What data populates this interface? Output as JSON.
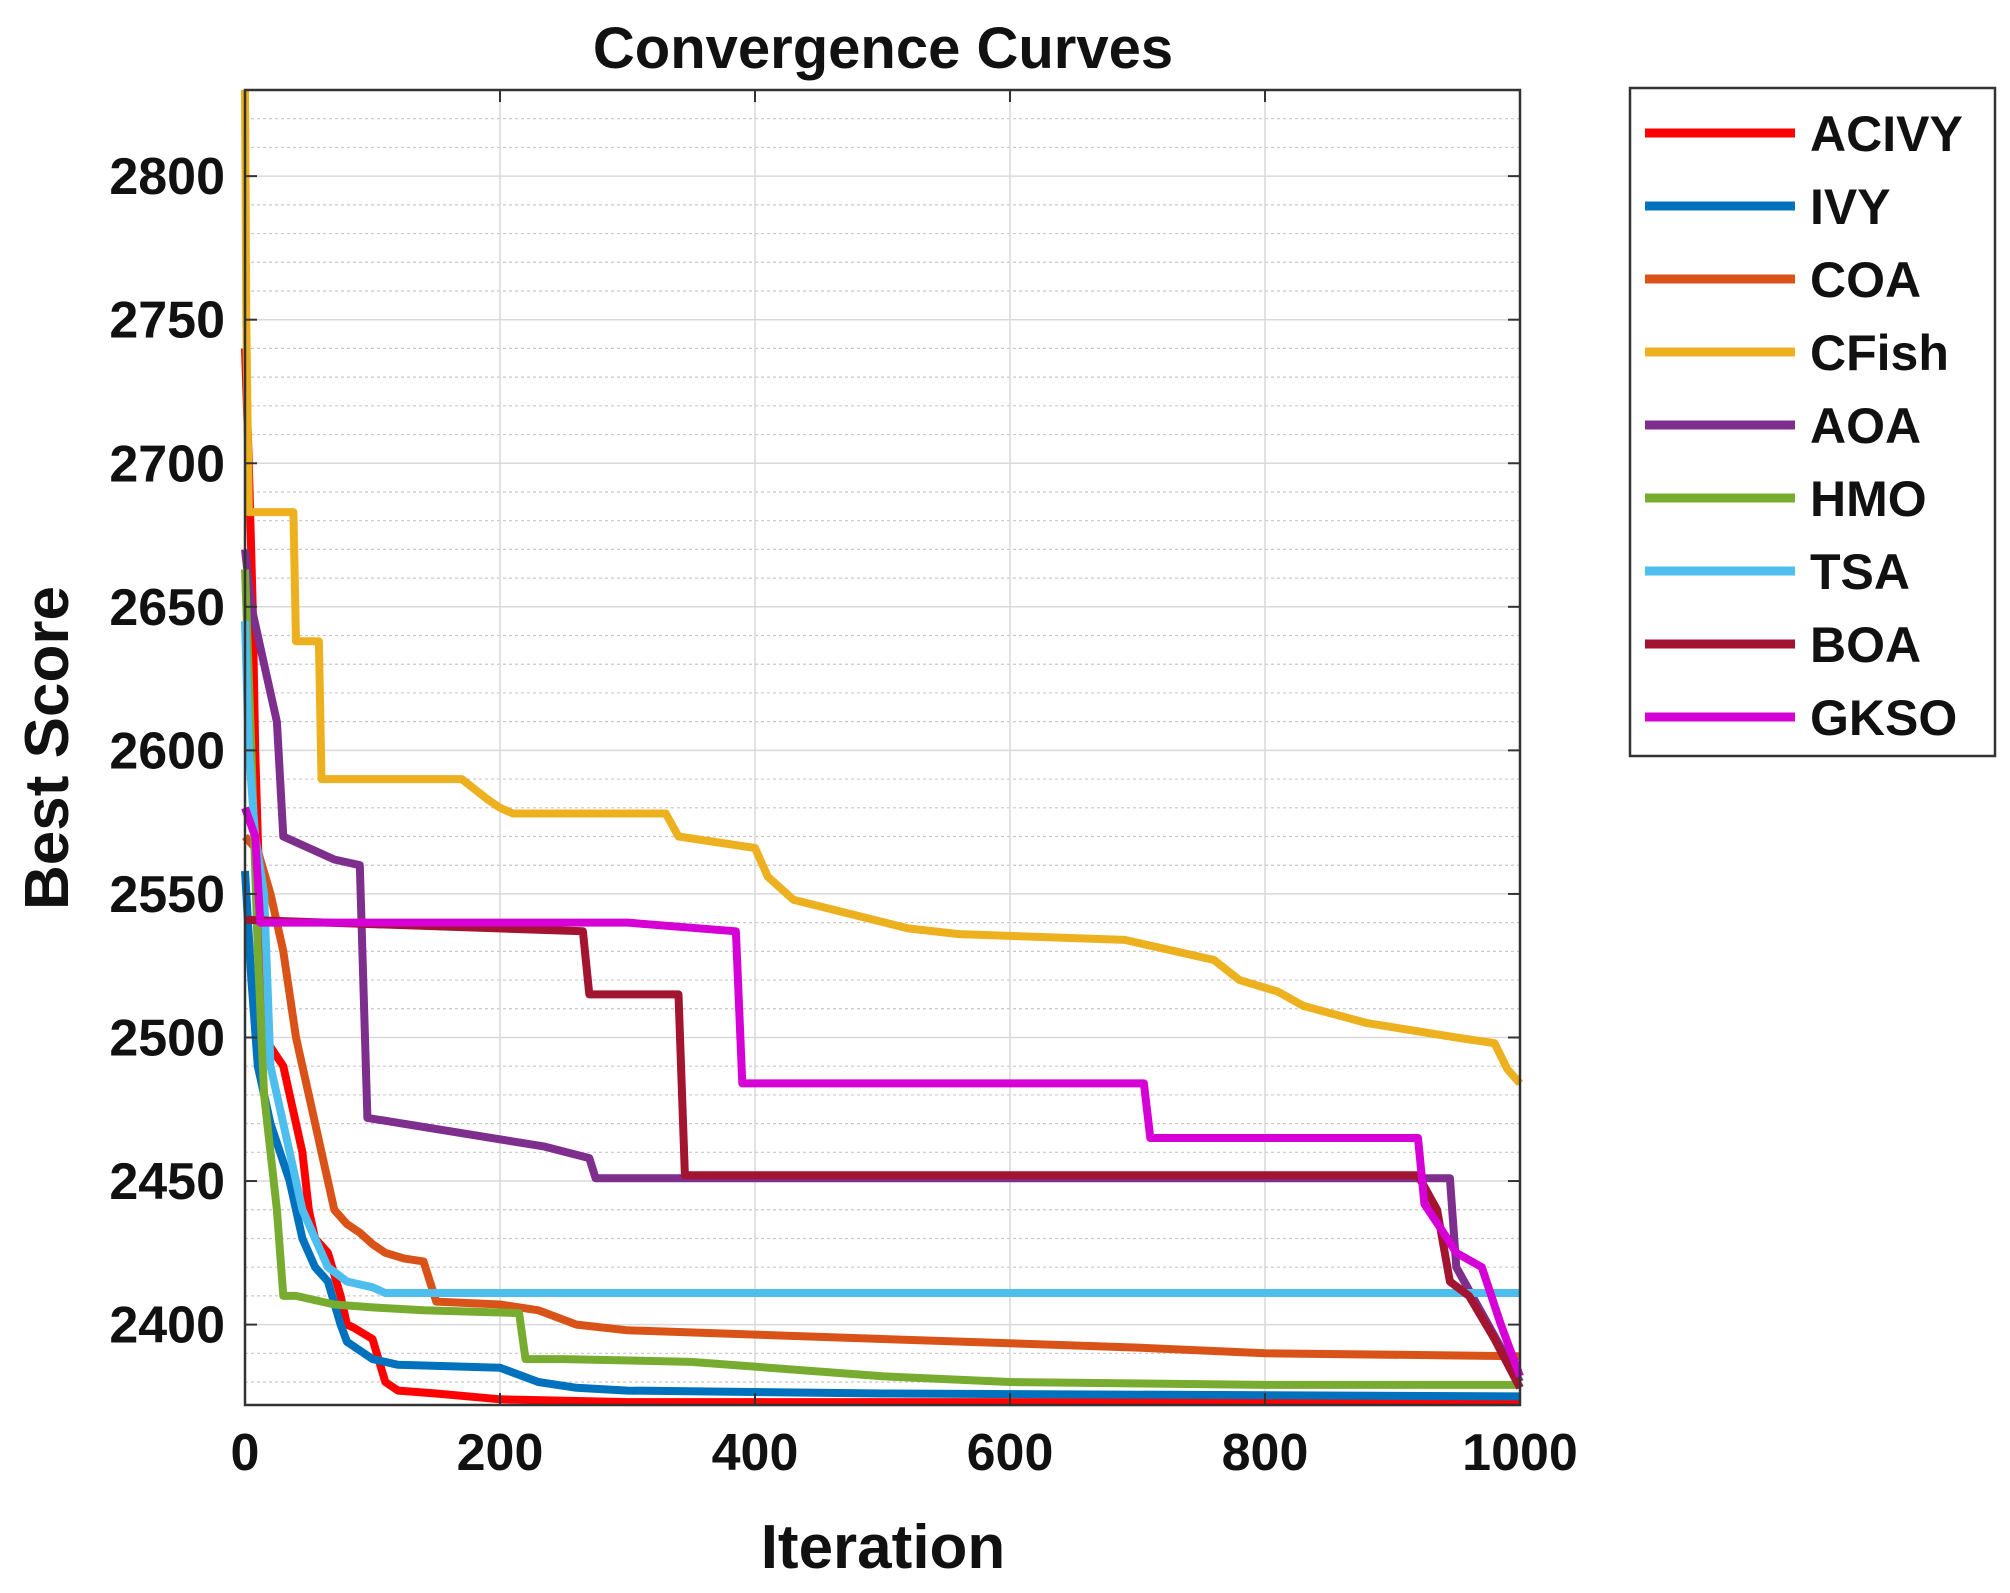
{
  "chart_data": {
    "type": "line",
    "title": "Convergence Curves",
    "xlabel": "Iteration",
    "ylabel": "Best Score",
    "xlim": [
      0,
      1000
    ],
    "ylim": [
      2372,
      2830
    ],
    "xticks": [
      0,
      200,
      400,
      600,
      800,
      1000
    ],
    "yticks": [
      2400,
      2450,
      2500,
      2550,
      2600,
      2650,
      2700,
      2750,
      2800
    ],
    "grid": true,
    "minor_grid_y": true,
    "legend_position": "outside-right",
    "series": [
      {
        "name": "ACIVY",
        "color": "#ff0000",
        "x": [
          0,
          3,
          6,
          8,
          10,
          15,
          30,
          45,
          50,
          55,
          65,
          75,
          80,
          85,
          100,
          110,
          120,
          150,
          200,
          300,
          500,
          1000
        ],
        "y": [
          2740,
          2700,
          2650,
          2600,
          2570,
          2500,
          2490,
          2460,
          2440,
          2430,
          2425,
          2410,
          2400,
          2399,
          2395,
          2380,
          2377,
          2376,
          2374,
          2373,
          2373,
          2373
        ]
      },
      {
        "name": "IVY",
        "color": "#0072bd",
        "x": [
          0,
          5,
          10,
          20,
          35,
          45,
          55,
          65,
          75,
          80,
          90,
          100,
          120,
          200,
          230,
          260,
          300,
          500,
          1000
        ],
        "y": [
          2558,
          2520,
          2490,
          2470,
          2450,
          2430,
          2420,
          2415,
          2400,
          2394,
          2391,
          2388,
          2386,
          2385,
          2380,
          2378,
          2377,
          2376,
          2375
        ]
      },
      {
        "name": "COA",
        "color": "#d95319",
        "x": [
          0,
          10,
          20,
          30,
          40,
          45,
          50,
          60,
          70,
          80,
          90,
          100,
          110,
          125,
          140,
          150,
          200,
          230,
          260,
          300,
          500,
          700,
          800,
          1000
        ],
        "y": [
          2570,
          2565,
          2550,
          2530,
          2500,
          2490,
          2480,
          2460,
          2440,
          2435,
          2432,
          2428,
          2425,
          2423,
          2422,
          2408,
          2407,
          2405,
          2400,
          2398,
          2395,
          2392,
          2390,
          2389
        ]
      },
      {
        "name": "CFish",
        "color": "#edb120",
        "x": [
          0,
          1,
          3,
          38,
          40,
          58,
          60,
          170,
          190,
          200,
          210,
          330,
          340,
          400,
          410,
          430,
          520,
          560,
          690,
          760,
          780,
          810,
          830,
          880,
          950,
          980,
          990,
          1000
        ],
        "y": [
          2830,
          2750,
          2683,
          2683,
          2638,
          2638,
          2590,
          2590,
          2583,
          2580,
          2578,
          2578,
          2570,
          2566,
          2556,
          2548,
          2538,
          2536,
          2534,
          2527,
          2520,
          2516,
          2511,
          2505,
          2500,
          2498,
          2489,
          2484
        ]
      },
      {
        "name": "AOA",
        "color": "#7e2f8e",
        "x": [
          0,
          5,
          15,
          25,
          30,
          70,
          90,
          96,
          235,
          270,
          275,
          945,
          950,
          1000
        ],
        "y": [
          2670,
          2650,
          2630,
          2610,
          2570,
          2562,
          2560,
          2472,
          2462,
          2458,
          2451,
          2451,
          2420,
          2380
        ]
      },
      {
        "name": "HMO",
        "color": "#77ac30",
        "x": [
          0,
          5,
          10,
          15,
          20,
          25,
          30,
          40,
          60,
          70,
          100,
          140,
          215,
          220,
          250,
          350,
          500,
          600,
          800,
          1000
        ],
        "y": [
          2663,
          2600,
          2530,
          2480,
          2460,
          2440,
          2410,
          2410,
          2408,
          2407,
          2406,
          2405,
          2404,
          2388,
          2388,
          2387,
          2382,
          2380,
          2379,
          2379
        ]
      },
      {
        "name": "TSA",
        "color": "#4dbeee",
        "x": [
          0,
          3,
          8,
          15,
          20,
          30,
          45,
          55,
          65,
          80,
          100,
          110,
          1000
        ],
        "y": [
          2645,
          2600,
          2570,
          2550,
          2490,
          2470,
          2440,
          2430,
          2420,
          2415,
          2413,
          2411,
          2411
        ]
      },
      {
        "name": "BOA",
        "color": "#a2142f",
        "x": [
          0,
          265,
          270,
          340,
          345,
          920,
          935,
          945,
          960,
          980,
          1000
        ],
        "y": [
          2541,
          2537,
          2515,
          2515,
          2452,
          2452,
          2440,
          2415,
          2410,
          2395,
          2378
        ]
      },
      {
        "name": "GKSO",
        "color": "#d600d6",
        "x": [
          0,
          8,
          12,
          300,
          385,
          390,
          705,
          710,
          920,
          925,
          940,
          950,
          970,
          985,
          1000
        ],
        "y": [
          2580,
          2570,
          2540,
          2540,
          2537,
          2484,
          2484,
          2465,
          2465,
          2442,
          2432,
          2425,
          2420,
          2400,
          2382
        ]
      }
    ]
  }
}
